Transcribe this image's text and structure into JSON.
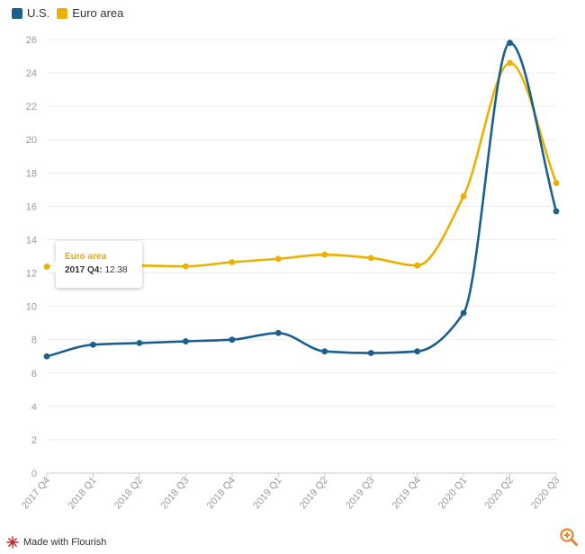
{
  "legend": {
    "items": [
      {
        "label": "U.S.",
        "color": "#1a5f8e"
      },
      {
        "label": "Euro area",
        "color": "#ebb000"
      }
    ]
  },
  "tooltip": {
    "title": "Euro area",
    "label": "2017 Q4:",
    "value": "12.38"
  },
  "footer": {
    "text": "Made with Flourish",
    "logo_icon": "flourish-logo-icon",
    "zoom_icon": "zoom-in-icon"
  },
  "chart_data": {
    "type": "line",
    "title": "",
    "xlabel": "",
    "ylabel": "",
    "categories": [
      "2017 Q4",
      "2018 Q1",
      "2018 Q2",
      "2018 Q3",
      "2018 Q4",
      "2019 Q1",
      "2019 Q2",
      "2019 Q3",
      "2019 Q4",
      "2020 Q1",
      "2020 Q2",
      "2020 Q3"
    ],
    "series": [
      {
        "name": "U.S.",
        "color": "#1a5f8e",
        "values": [
          7.0,
          7.7,
          7.8,
          7.9,
          8.0,
          8.4,
          7.3,
          7.2,
          7.3,
          9.6,
          25.8,
          15.7
        ]
      },
      {
        "name": "Euro area",
        "color": "#ebb000",
        "values": [
          12.38,
          12.5,
          12.45,
          12.4,
          12.65,
          12.85,
          13.1,
          12.9,
          12.45,
          16.6,
          24.6,
          17.4
        ]
      }
    ],
    "ylim": [
      0,
      26
    ],
    "yticks": [
      0,
      2,
      4,
      6,
      8,
      10,
      12,
      14,
      16,
      18,
      20,
      22,
      24,
      26
    ],
    "grid": true,
    "legend_position": "top-left"
  }
}
